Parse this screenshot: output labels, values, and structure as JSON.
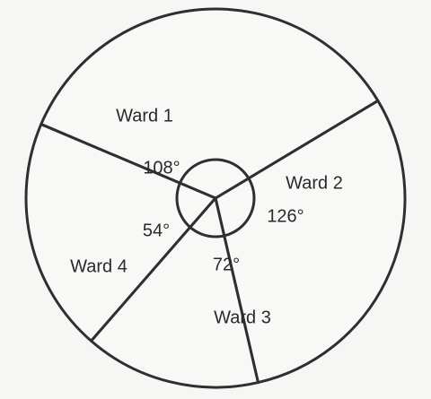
{
  "chart_data": {
    "type": "pie",
    "title": "",
    "unit": "°",
    "slices": [
      {
        "label": "Ward 1",
        "value": 108,
        "value_label": "108°"
      },
      {
        "label": "Ward 2",
        "value": 126,
        "value_label": "126°"
      },
      {
        "label": "Ward 3",
        "value": 72,
        "value_label": "72°"
      },
      {
        "label": "Ward 4",
        "value": 54,
        "value_label": "54°"
      }
    ],
    "colors": {
      "stroke": "#2f2f2f",
      "fill": "#f8f8f6",
      "text": "#2a2a2a"
    }
  }
}
